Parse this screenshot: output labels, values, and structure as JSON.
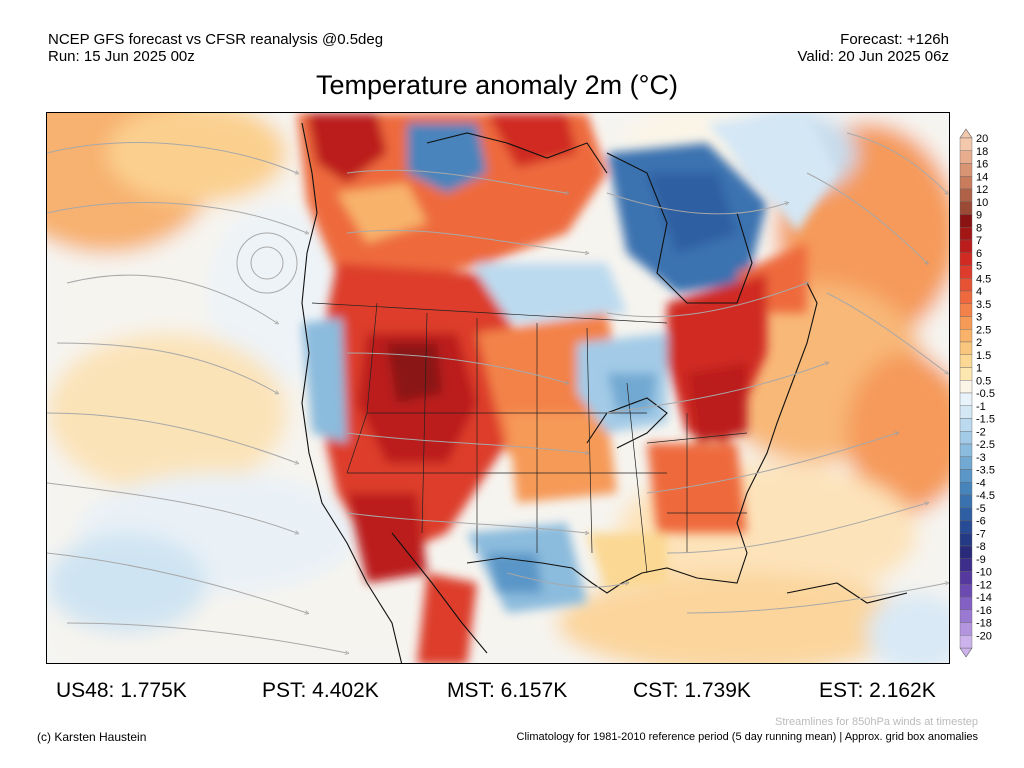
{
  "header": {
    "line1": "NCEP GFS forecast vs CFSR reanalysis @0.5deg",
    "run": "Run: 15 Jun 2025 00z",
    "forecast": "Forecast: +126h",
    "valid": "Valid: 20 Jun 2025 06z"
  },
  "title": "Temperature anomaly 2m (°C)",
  "colorbar": {
    "labels": [
      "20",
      "18",
      "16",
      "14",
      "12",
      "10",
      "9",
      "8",
      "7",
      "6",
      "5",
      "4.5",
      "4",
      "3.5",
      "3",
      "2.5",
      "2",
      "1.5",
      "1",
      "0.5",
      "-0.5",
      "-1",
      "-1.5",
      "-2",
      "-2.5",
      "-3",
      "-3.5",
      "-4",
      "-4.5",
      "-5",
      "-6",
      "-7",
      "-8",
      "-9",
      "-10",
      "-12",
      "-14",
      "-16",
      "-18",
      "-20"
    ],
    "colors": [
      "#f3c8ad",
      "#e8ad8f",
      "#d99473",
      "#c87c5c",
      "#b06248",
      "#9b4a36",
      "#8a1414",
      "#a31616",
      "#bb1c1c",
      "#d02a22",
      "#dd3c2c",
      "#e65234",
      "#ee6a3e",
      "#f3824a",
      "#f69a58",
      "#f8b26a",
      "#f9c67e",
      "#fbd893",
      "#fde7b0",
      "#fbf5e8",
      "#e8f2fa",
      "#d4e7f5",
      "#bcdaef",
      "#a3cbe7",
      "#8bbbdd",
      "#72a9d2",
      "#5a96c7",
      "#4884bc",
      "#3a72b0",
      "#2e5fa2",
      "#274b94",
      "#243a85",
      "#2a2a7a",
      "#3d2e8c",
      "#55399f",
      "#6c4ab2",
      "#8360c4",
      "#9a79d2",
      "#b394df",
      "#cdb3ec"
    ]
  },
  "stats": [
    {
      "label": "US48: 1.775K"
    },
    {
      "label": "PST: 4.402K"
    },
    {
      "label": "MST: 6.157K"
    },
    {
      "label": "CST: 1.739K"
    },
    {
      "label": "EST: 2.162K"
    }
  ],
  "footer": {
    "streamlines_note": "Streamlines for 850hPa winds at timestep",
    "credit": "(c) Karsten Haustein",
    "climatology": "Climatology for 1981-2010 reference period (5 day running mean) | Approx. grid box anomalies"
  }
}
